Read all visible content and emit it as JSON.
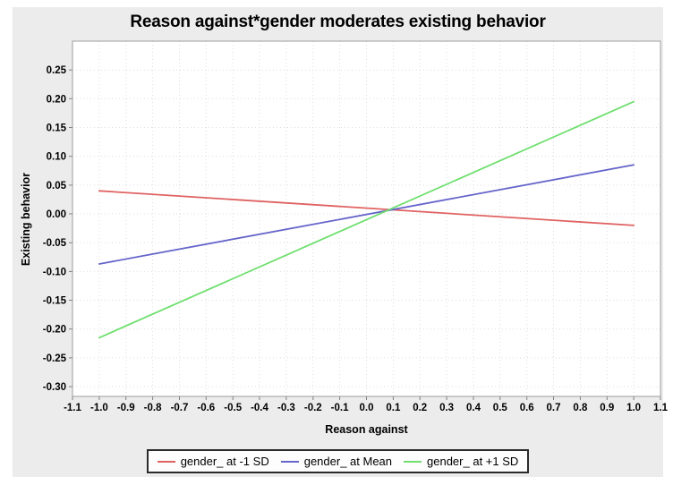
{
  "chart_data": {
    "type": "line",
    "title": "Reason against*gender moderates existing behavior",
    "xlabel": "Reason against",
    "ylabel": "Existing behavior",
    "xlim": [
      -1.1,
      1.1
    ],
    "ylim": [
      -0.317,
      0.3
    ],
    "grid": true,
    "legend_position": "bottom",
    "xticks": [
      -1.1,
      -1.0,
      -0.9,
      -0.8,
      -0.7,
      -0.6,
      -0.5,
      -0.4,
      -0.3,
      -0.2,
      -0.1,
      0.0,
      0.1,
      0.2,
      0.3,
      0.4,
      0.5,
      0.6,
      0.7,
      0.8,
      0.9,
      1.0,
      1.1
    ],
    "xtick_labels": [
      "-1.1",
      "-1.0",
      "-0.9",
      "-0.8",
      "-0.7",
      "-0.6",
      "-0.5",
      "-0.4",
      "-0.3",
      "-0.2",
      "-0.1",
      "0.0",
      "0.1",
      "0.2",
      "0.3",
      "0.4",
      "0.5",
      "0.6",
      "0.7",
      "0.8",
      "0.9",
      "1.0",
      "1.1"
    ],
    "yticks": [
      0.25,
      0.2,
      0.15,
      0.1,
      0.05,
      0.0,
      -0.05,
      -0.1,
      -0.15,
      -0.2,
      -0.25,
      -0.3
    ],
    "ytick_labels": [
      "0.25",
      "0.20",
      "0.15",
      "0.10",
      "0.05",
      "0.00",
      "-0.05",
      "-0.10",
      "-0.15",
      "-0.20",
      "-0.25",
      "-0.30"
    ],
    "series": [
      {
        "name": "gender_ at -1 SD",
        "color": "#e06262",
        "x": [
          -1.0,
          1.0
        ],
        "y": [
          0.04,
          -0.02
        ]
      },
      {
        "name": "gender_ at Mean",
        "color": "#6565cb",
        "x": [
          -1.0,
          1.0
        ],
        "y": [
          -0.087,
          0.085
        ]
      },
      {
        "name": "gender_ at +1 SD",
        "color": "#6fdf6f",
        "x": [
          -1.0,
          1.0
        ],
        "y": [
          -0.215,
          0.195
        ]
      }
    ]
  },
  "colors": {
    "panel_bg": "#ececec",
    "plot_bg": "#ffffff",
    "grid_line": "#dedede",
    "plot_border": "#9c9c9c",
    "tick_mark": "#808080",
    "legend_border": "#2b2b2b",
    "legend_bg": "#fdfdfd",
    "text": "#000000"
  }
}
